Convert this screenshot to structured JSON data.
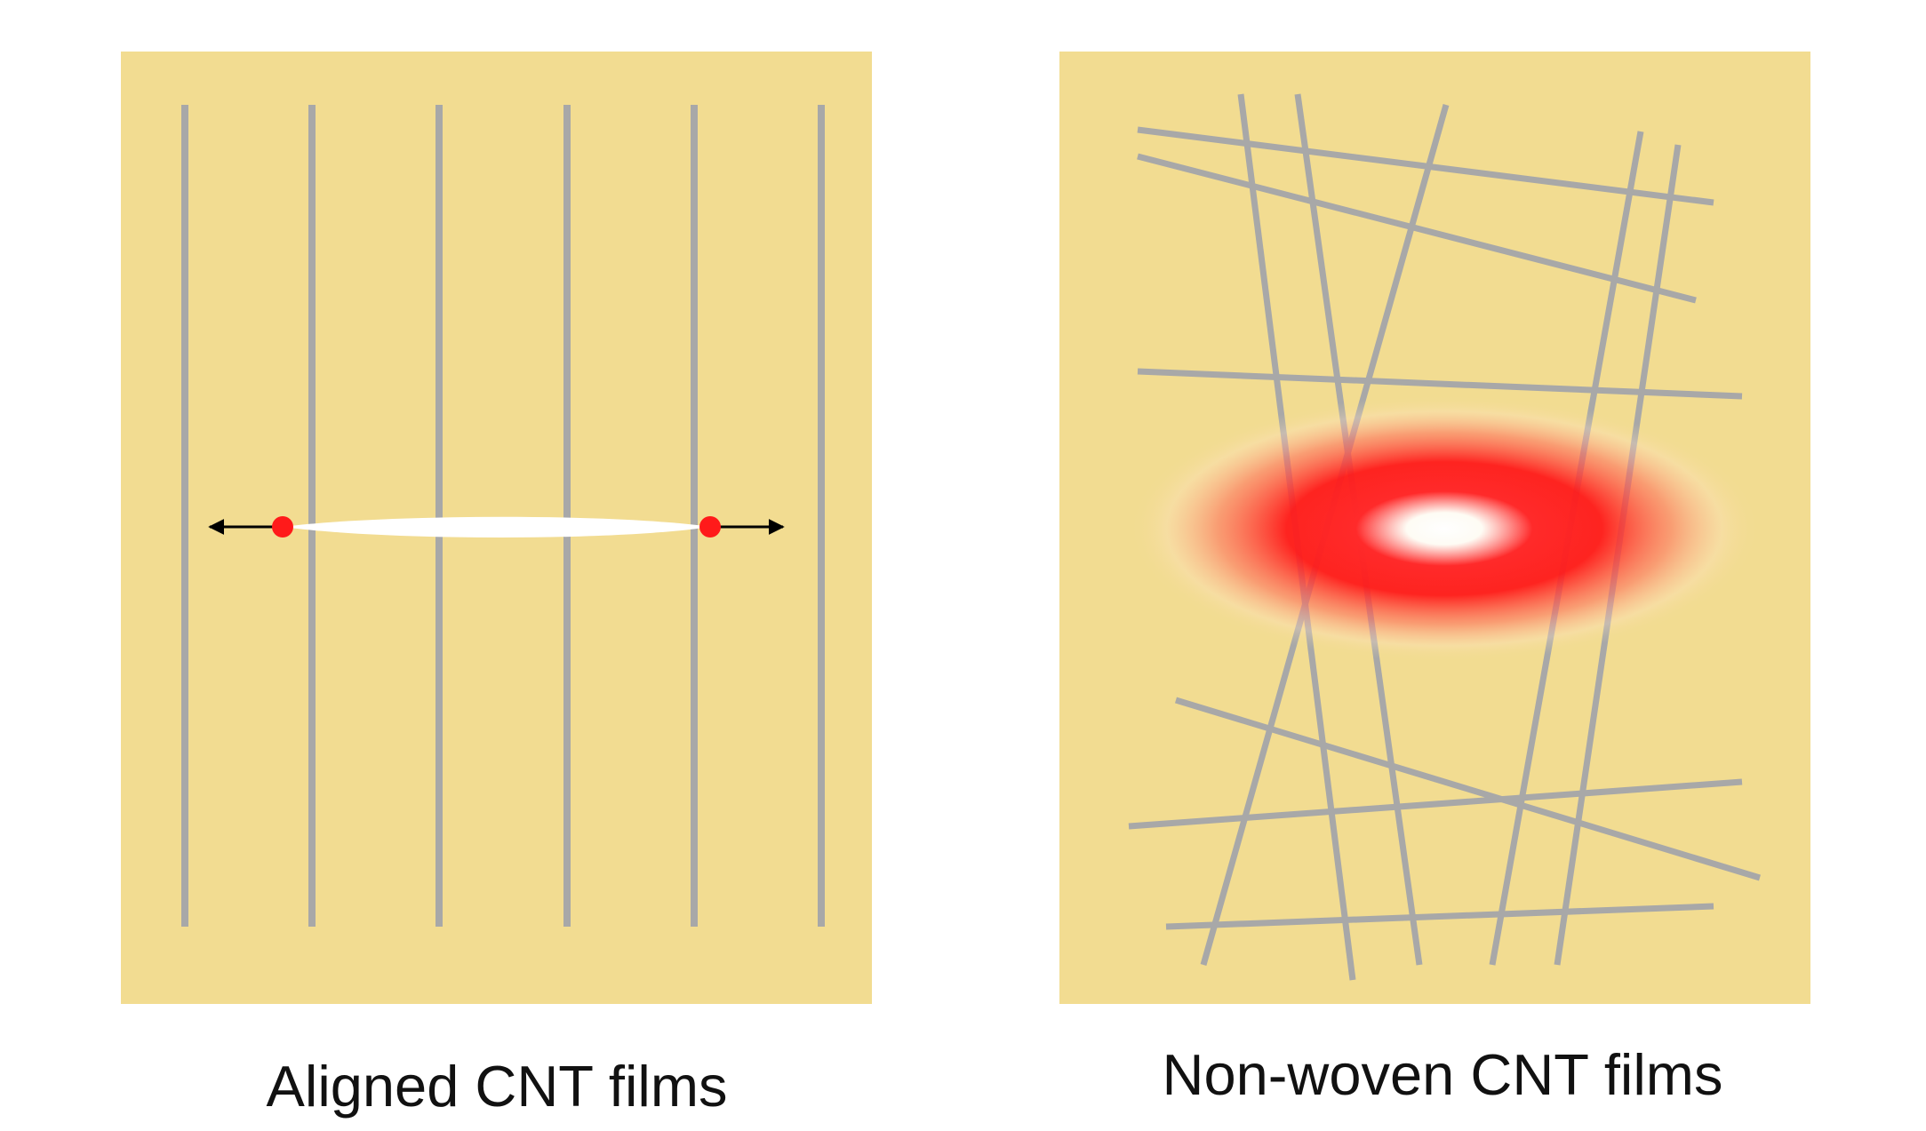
{
  "panels": {
    "aligned": {
      "caption": "Aligned CNT films",
      "background_color": "#f2dc91",
      "fiber_color": "#a8a8a8",
      "crack_color": "#ffffff",
      "tip_color": "#ff1a1a",
      "arrow_color": "#000000"
    },
    "nonwoven": {
      "caption": "Non-woven CNT films",
      "background_color": "#f2dc91",
      "fiber_color": "#a8a8a8",
      "hotspot_center_color": "#ffffff",
      "hotspot_color": "#ff1a1a"
    }
  }
}
